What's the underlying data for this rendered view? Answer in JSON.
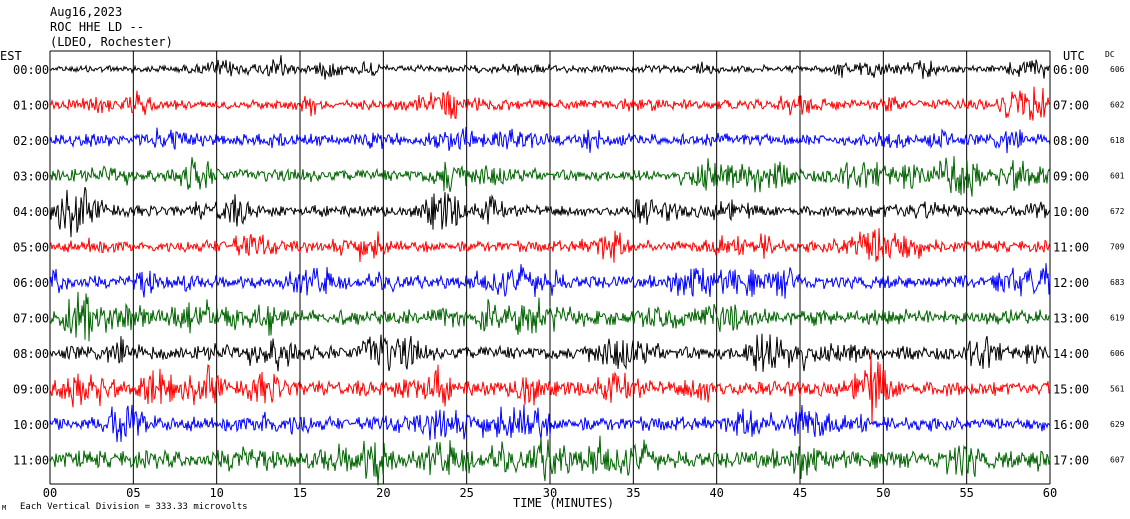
{
  "header": {
    "date": "Aug16,2023",
    "station": "ROC HHE LD --",
    "network": "(LDEO, Rochester)",
    "left_zone": "EST",
    "right_zone": "UTC",
    "dc_label": "DC"
  },
  "footer": {
    "xlabel": "TIME (MINUTES)",
    "scale_note": "Each Vertical Division =  333.33 microvolts",
    "corner_mark": "M"
  },
  "colors": {
    "cycle": [
      "#000000",
      "#ff0000",
      "#0000ff",
      "#006400"
    ],
    "background": "#ffffff"
  },
  "chart_data": {
    "type": "line",
    "title": "ROC HHE LD --",
    "xlabel": "TIME (MINUTES)",
    "xlim": [
      0,
      60
    ],
    "x_ticks": [
      "00",
      "05",
      "10",
      "15",
      "20",
      "25",
      "30",
      "35",
      "40",
      "45",
      "50",
      "55",
      "60"
    ],
    "x_tick_values": [
      0,
      5,
      10,
      15,
      20,
      25,
      30,
      35,
      40,
      45,
      50,
      55,
      60
    ],
    "grid": "vertical",
    "rows": [
      {
        "est": "00:00",
        "utc": "06:00",
        "dc": "606",
        "color": "#000000",
        "amplitude": 0.25
      },
      {
        "est": "01:00",
        "utc": "07:00",
        "dc": "602",
        "color": "#ff0000",
        "amplitude": 0.35
      },
      {
        "est": "02:00",
        "utc": "08:00",
        "dc": "618",
        "color": "#0000ff",
        "amplitude": 0.4
      },
      {
        "est": "03:00",
        "utc": "09:00",
        "dc": "601",
        "color": "#006400",
        "amplitude": 0.45
      },
      {
        "est": "04:00",
        "utc": "10:00",
        "dc": "672",
        "color": "#000000",
        "amplitude": 0.4
      },
      {
        "est": "05:00",
        "utc": "11:00",
        "dc": "709",
        "color": "#ff0000",
        "amplitude": 0.4
      },
      {
        "est": "06:00",
        "utc": "12:00",
        "dc": "683",
        "color": "#0000ff",
        "amplitude": 0.45
      },
      {
        "est": "07:00",
        "utc": "13:00",
        "dc": "619",
        "color": "#006400",
        "amplitude": 0.55
      },
      {
        "est": "08:00",
        "utc": "14:00",
        "dc": "606",
        "color": "#000000",
        "amplitude": 0.5
      },
      {
        "est": "09:00",
        "utc": "15:00",
        "dc": "561",
        "color": "#ff0000",
        "amplitude": 0.55
      },
      {
        "est": "10:00",
        "utc": "16:00",
        "dc": "629",
        "color": "#0000ff",
        "amplitude": 0.5
      },
      {
        "est": "11:00",
        "utc": "17:00",
        "dc": "607",
        "color": "#006400",
        "amplitude": 0.6
      }
    ]
  }
}
